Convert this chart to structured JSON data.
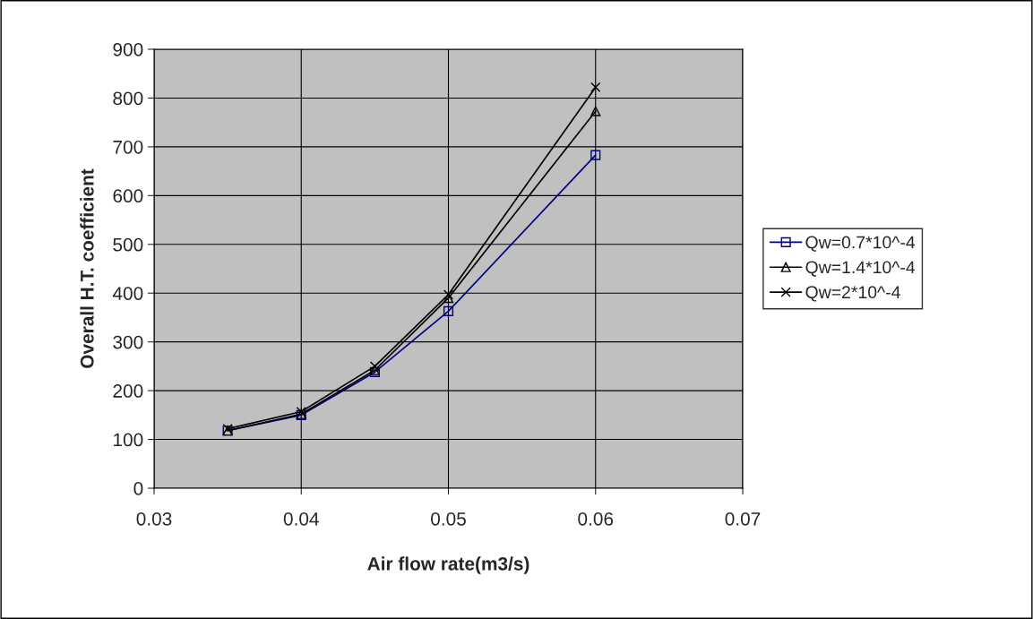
{
  "chart_data": {
    "type": "line",
    "xlabel": "Air flow rate(m3/s)",
    "ylabel": "Overall H.T. coefficient",
    "x": [
      0.035,
      0.04,
      0.045,
      0.05,
      0.06
    ],
    "series": [
      {
        "name": "Qw=0.7*10^-4",
        "color": "#000080",
        "marker": "square",
        "values": [
          118,
          150,
          238,
          363,
          683
        ]
      },
      {
        "name": "Qw=1.4*10^-4",
        "color": "#000000",
        "marker": "triangle",
        "values": [
          118,
          152,
          242,
          390,
          773
        ]
      },
      {
        "name": "Qw=2*10^-4",
        "color": "#000000",
        "marker": "cross",
        "values": [
          122,
          157,
          250,
          397,
          822
        ]
      }
    ],
    "xlim": [
      0.03,
      0.07
    ],
    "xticks": [
      0.03,
      0.04,
      0.05,
      0.06,
      0.07
    ],
    "ylim": [
      0,
      900
    ],
    "yticks": [
      0,
      100,
      200,
      300,
      400,
      500,
      600,
      700,
      800,
      900
    ],
    "grid": true,
    "legend": "right",
    "line_style": "solid"
  }
}
